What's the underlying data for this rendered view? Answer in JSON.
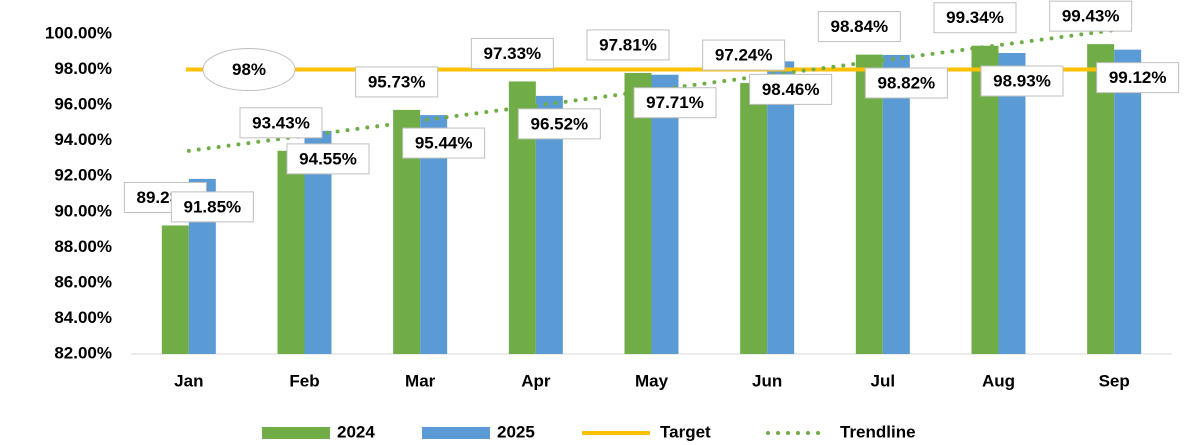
{
  "chart_data": {
    "type": "bar",
    "categories": [
      "Jan",
      "Feb",
      "Mar",
      "Apr",
      "May",
      "Jun",
      "Jul",
      "Aug",
      "Sep"
    ],
    "series": [
      {
        "name": "2024",
        "color": "#70ad47",
        "values": [
          89.23,
          93.43,
          95.73,
          97.33,
          97.81,
          97.24,
          98.84,
          99.34,
          99.43
        ],
        "value_labels": [
          "89.23%",
          "93.43%",
          "95.73%",
          "97.33%",
          "97.81%",
          "97.24%",
          "98.84%",
          "99.34%",
          "99.43%"
        ]
      },
      {
        "name": "2025",
        "color": "#5b9bd5",
        "values": [
          91.85,
          94.55,
          95.44,
          96.52,
          97.71,
          98.46,
          98.82,
          98.93,
          99.12
        ],
        "value_labels": [
          "91.85%",
          "94.55%",
          "95.44%",
          "96.52%",
          "97.71%",
          "98.46%",
          "98.82%",
          "98.93%",
          "99.12%"
        ]
      }
    ],
    "target": {
      "name": "Target",
      "value": 98,
      "label": "98%",
      "color": "#ffc000"
    },
    "trendline": {
      "name": "Trendline",
      "of": "2025",
      "color": "#70ad47"
    },
    "ylim": [
      82,
      100
    ],
    "yticks": [
      {
        "value": 82,
        "label": "82.00%"
      },
      {
        "value": 84,
        "label": "84.00%"
      },
      {
        "value": 86,
        "label": "86.00%"
      },
      {
        "value": 88,
        "label": "88.00%"
      },
      {
        "value": 90,
        "label": "90.00%"
      },
      {
        "value": 92,
        "label": "92.00%"
      },
      {
        "value": 94,
        "label": "94.00%"
      },
      {
        "value": 96,
        "label": "96.00%"
      },
      {
        "value": 98,
        "label": "98.00%"
      },
      {
        "value": 100,
        "label": "100.00%"
      }
    ],
    "grid": false,
    "legend": "bottom"
  }
}
